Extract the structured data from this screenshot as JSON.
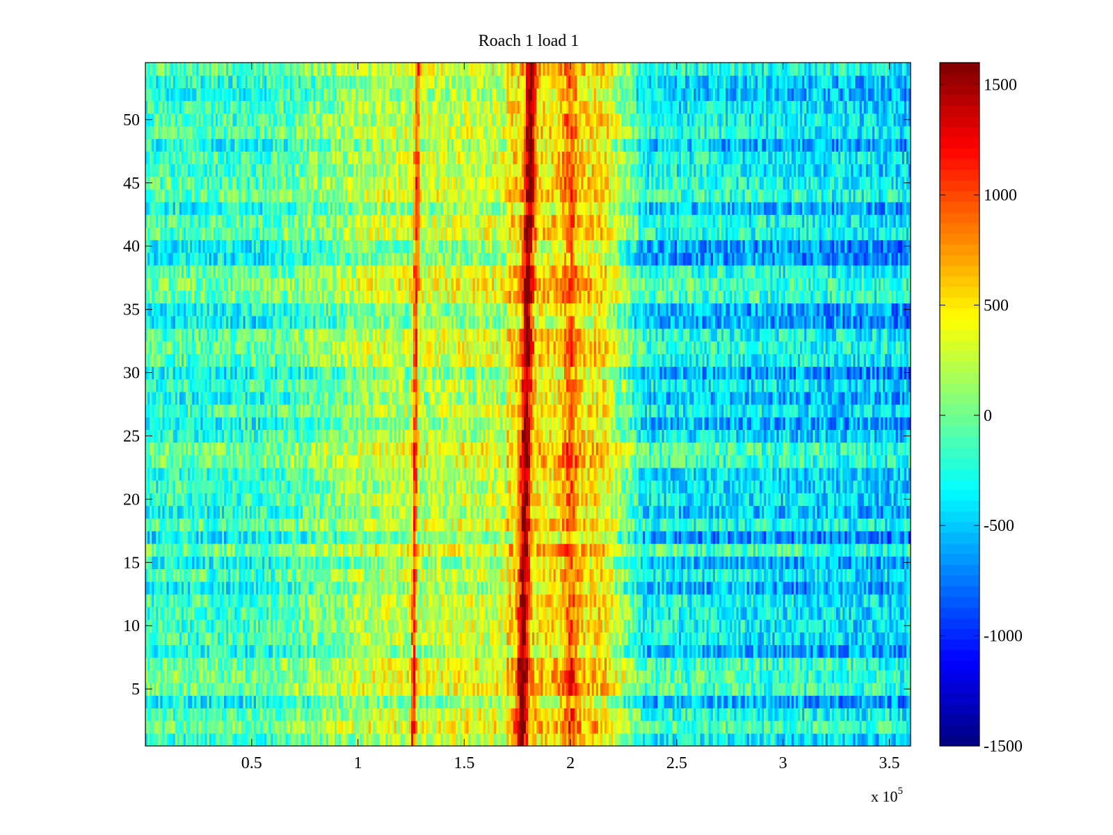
{
  "chart_data": {
    "type": "heatmap",
    "title": "Roach 1 load 1",
    "xlabel": "",
    "ylabel": "",
    "x_multiplier_label": "x 10",
    "x_multiplier_exponent": "5",
    "xlim": [
      0,
      3.6
    ],
    "ylim": [
      0.5,
      54.5
    ],
    "x_ticks": [
      0.5,
      1,
      1.5,
      2,
      2.5,
      3,
      3.5
    ],
    "x_tick_labels": [
      "0.5",
      "1",
      "1.5",
      "2",
      "2.5",
      "3",
      "3.5"
    ],
    "y_ticks": [
      5,
      10,
      15,
      20,
      25,
      30,
      35,
      40,
      45,
      50
    ],
    "y_tick_labels": [
      "5",
      "10",
      "15",
      "20",
      "25",
      "30",
      "35",
      "40",
      "45",
      "50"
    ],
    "rows": 54,
    "columns": 360,
    "colormap": "jet",
    "clim": [
      -1500,
      1600
    ],
    "colorbar_ticks": [
      1500,
      1000,
      500,
      0,
      -500,
      -1000,
      -1500
    ],
    "colorbar_tick_labels": [
      "1500",
      "1000",
      "500",
      "0",
      "-500",
      "-1000",
      "-1500"
    ],
    "features": [
      {
        "description": "narrow high ridge",
        "x_center": 1.27,
        "value": 1200
      },
      {
        "description": "dominant high band",
        "x_center": 1.79,
        "value": 1500
      },
      {
        "description": "secondary high band",
        "x_center": 2.0,
        "value": 900
      },
      {
        "description": "elevated region",
        "x_range": [
          1.0,
          2.15
        ],
        "value": 400
      },
      {
        "description": "low region",
        "x_range": [
          2.2,
          3.6
        ],
        "value": -500
      }
    ],
    "grid": false,
    "colorbar_position": "right"
  }
}
